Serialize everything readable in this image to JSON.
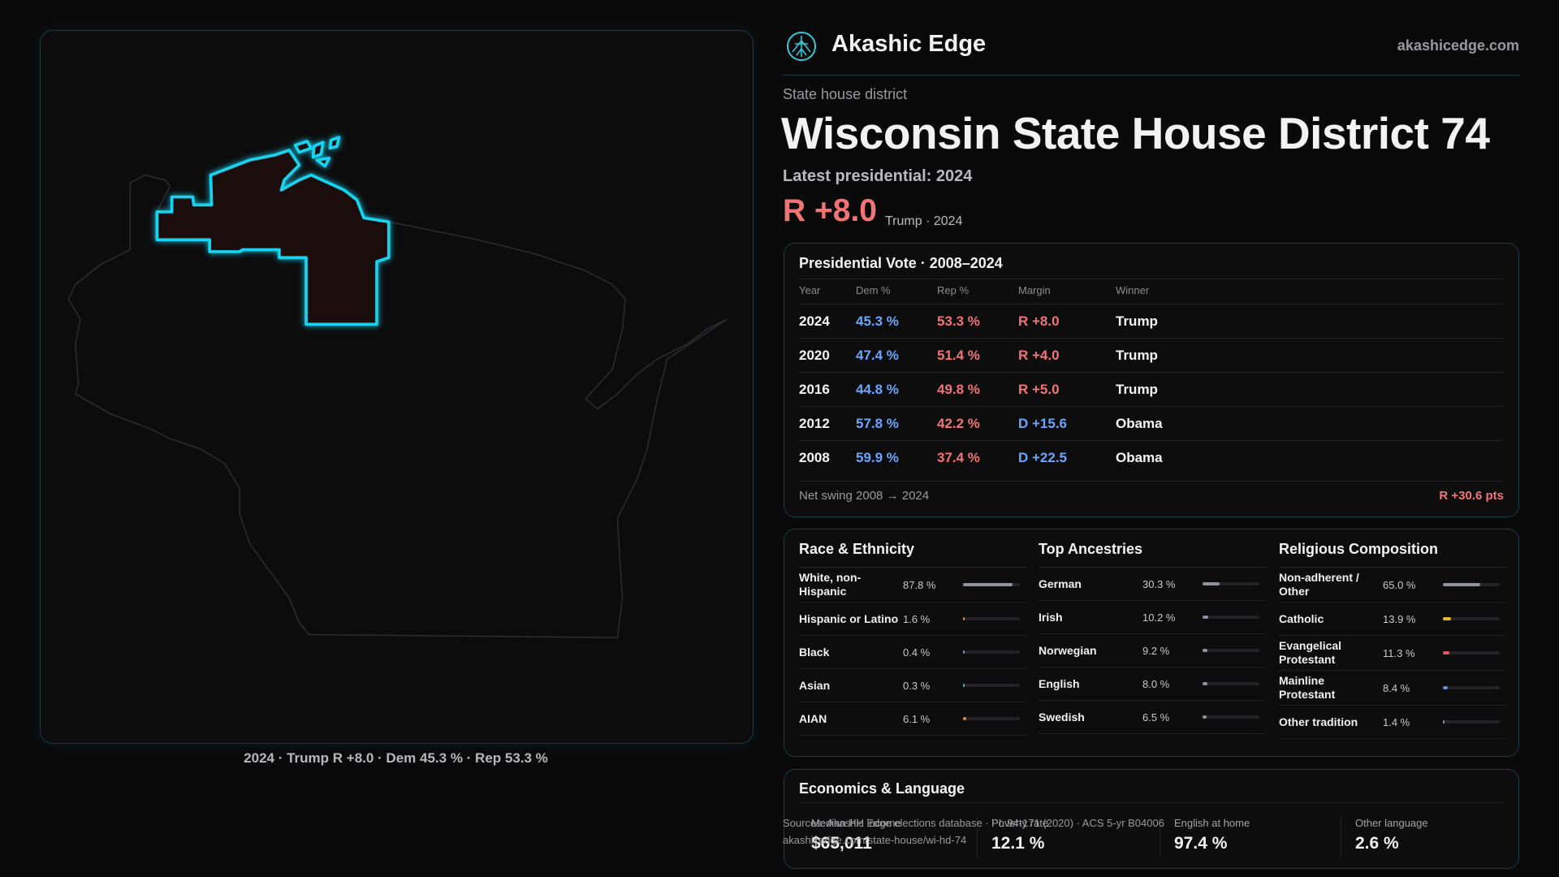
{
  "header": {
    "brand": "Akashic Edge",
    "site": "akashicedge.com"
  },
  "district": {
    "kicker": "State house district",
    "title": "Wisconsin State House District 74",
    "latest": "Latest presidential: 2024",
    "margin": "R +8.0",
    "margin_note": "Trump · 2024"
  },
  "map": {
    "caption": "2024 · Trump R +8.0 · Dem 45.3 % · Rep 53.3 %"
  },
  "presidential": {
    "title": "Presidential Vote · 2008–2024",
    "columns": [
      "Year",
      "Dem %",
      "Rep %",
      "Margin",
      "Winner"
    ],
    "dem_color": "#6aa5ff",
    "rep_color": "#f27474",
    "rows": [
      {
        "cells": [
          "2024",
          "45.3 %",
          "53.3 %",
          "R +8.0",
          "Trump"
        ],
        "margin_color": "#f27474"
      },
      {
        "cells": [
          "2020",
          "47.4 %",
          "51.4 %",
          "R +4.0",
          "Trump"
        ],
        "margin_color": "#f27474"
      },
      {
        "cells": [
          "2016",
          "44.8 %",
          "49.8 %",
          "R +5.0",
          "Trump"
        ],
        "margin_color": "#f27474"
      },
      {
        "cells": [
          "2012",
          "57.8 %",
          "42.2 %",
          "D +15.6",
          "Obama"
        ],
        "margin_color": "#6aa5ff"
      },
      {
        "cells": [
          "2008",
          "59.9 %",
          "37.4 %",
          "D +22.5",
          "Obama"
        ],
        "margin_color": "#6aa5ff"
      }
    ],
    "swing_label": "Net swing 2008 → 2024",
    "swing": "R +30.6 pts",
    "swing_color": "#f27474"
  },
  "demographics": [
    {
      "title": "Race & Ethnicity",
      "xlim": [
        0,
        100
      ],
      "items": [
        {
          "label": "White, non-Hispanic",
          "value": 87.8,
          "value_label": "87.8 %",
          "color": "#8d939c"
        },
        {
          "label": "Hispanic or Latino",
          "value": 1.6,
          "value_label": "1.6 %",
          "color": "#e0843a"
        },
        {
          "label": "Black",
          "value": 0.4,
          "value_label": "0.4 %",
          "color": "#5b8fe0"
        },
        {
          "label": "Asian",
          "value": 0.3,
          "value_label": "0.3 %",
          "color": "#3fb8a0"
        },
        {
          "label": "AIAN",
          "value": 6.1,
          "value_label": "6.1 %",
          "color": "#e0843a"
        }
      ]
    },
    {
      "title": "Top Ancestries",
      "xlim": [
        0,
        100
      ],
      "items": [
        {
          "label": "German",
          "value": 30.3,
          "value_label": "30.3 %",
          "color": "#8d939c"
        },
        {
          "label": "Irish",
          "value": 10.2,
          "value_label": "10.2 %",
          "color": "#8d939c"
        },
        {
          "label": "Norwegian",
          "value": 9.2,
          "value_label": "9.2 %",
          "color": "#8d939c"
        },
        {
          "label": "English",
          "value": 8.0,
          "value_label": "8.0 %",
          "color": "#8d939c"
        },
        {
          "label": "Swedish",
          "value": 6.5,
          "value_label": "6.5 %",
          "color": "#8d939c"
        }
      ]
    },
    {
      "title": "Religious Composition",
      "xlim": [
        0,
        100
      ],
      "items": [
        {
          "label": "Non-adherent / Other",
          "value": 65.0,
          "value_label": "65.0 %",
          "color": "#8d939c"
        },
        {
          "label": "Catholic",
          "value": 13.9,
          "value_label": "13.9 %",
          "color": "#e8b923"
        },
        {
          "label": "Evangelical Protestant",
          "value": 11.3,
          "value_label": "11.3 %",
          "color": "#e05a5a"
        },
        {
          "label": "Mainline Protestant",
          "value": 8.4,
          "value_label": "8.4 %",
          "color": "#5b8fe0"
        },
        {
          "label": "Other tradition",
          "value": 1.4,
          "value_label": "1.4 %",
          "color": "#8d939c"
        }
      ]
    }
  ],
  "economics": {
    "title": "Economics & Language",
    "items": [
      {
        "label": "Median HH income",
        "value": "$65,011"
      },
      {
        "label": "Poverty rate",
        "value": "12.1 %"
      },
      {
        "label": "English at home",
        "value": "97.4 %"
      },
      {
        "label": "Other language",
        "value": "2.6 %"
      }
    ]
  },
  "footer": {
    "sources": "Sources: Akashic Edge elections database · PL 94-171 (2020) · ACS 5-yr B04006",
    "url": "akashicedge.com/state-house/wi-hd-74"
  }
}
